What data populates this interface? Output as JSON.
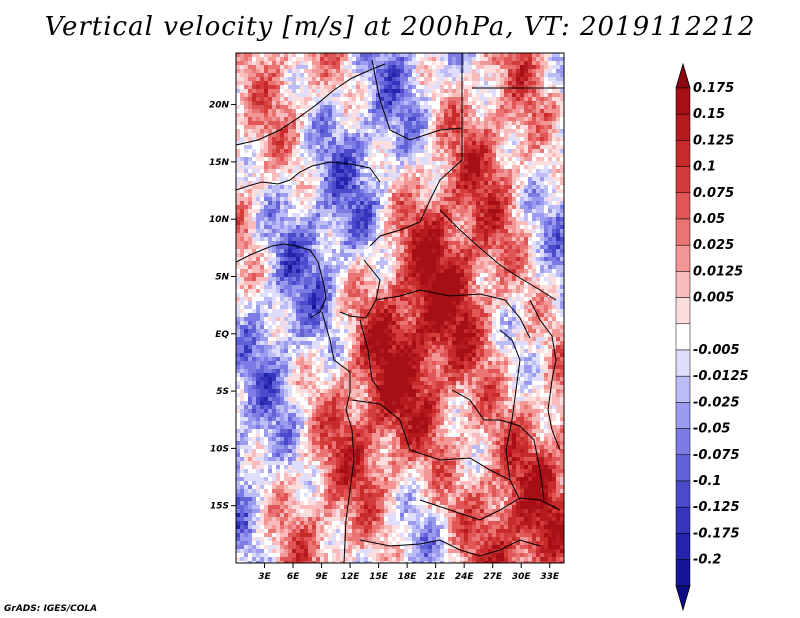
{
  "title": "Vertical velocity [m/s] at 200hPa, VT: 2019112212",
  "credit": "GrADS: IGES/COLA",
  "map": {
    "lon_range": [
      0,
      34.5
    ],
    "lat_range": [
      -20,
      24.5
    ],
    "lat_ticks": [
      {
        "value": 20,
        "label": "20N"
      },
      {
        "value": 15,
        "label": "15N"
      },
      {
        "value": 10,
        "label": "10N"
      },
      {
        "value": 5,
        "label": "5N"
      },
      {
        "value": 0,
        "label": "EQ"
      },
      {
        "value": -5,
        "label": "5S"
      },
      {
        "value": -10,
        "label": "10S"
      },
      {
        "value": -15,
        "label": "15S"
      }
    ],
    "lon_ticks": [
      {
        "value": 3,
        "label": "3E"
      },
      {
        "value": 6,
        "label": "6E"
      },
      {
        "value": 9,
        "label": "9E"
      },
      {
        "value": 12,
        "label": "12E"
      },
      {
        "value": 15,
        "label": "15E"
      },
      {
        "value": 18,
        "label": "18E"
      },
      {
        "value": 21,
        "label": "21E"
      },
      {
        "value": 24,
        "label": "24E"
      },
      {
        "value": 27,
        "label": "27E"
      },
      {
        "value": 30,
        "label": "30E"
      },
      {
        "value": 33,
        "label": "33E"
      }
    ]
  },
  "colorbar": {
    "levels": [
      {
        "label": "0.175",
        "color": "#a50f15"
      },
      {
        "label": "0.15",
        "color": "#b51a1e"
      },
      {
        "label": "0.125",
        "color": "#c62a2a"
      },
      {
        "label": "0.1",
        "color": "#d43c3c"
      },
      {
        "label": "0.075",
        "color": "#e05656"
      },
      {
        "label": "0.05",
        "color": "#ea7474"
      },
      {
        "label": "0.025",
        "color": "#f29696"
      },
      {
        "label": "0.0125",
        "color": "#f8bcbc"
      },
      {
        "label": "0.005",
        "color": "#fcdede"
      },
      {
        "label": "",
        "color": "#ffffff"
      },
      {
        "label": "-0.005",
        "color": "#dedefc"
      },
      {
        "label": "-0.0125",
        "color": "#bcbcf6"
      },
      {
        "label": "-0.025",
        "color": "#9a9aee"
      },
      {
        "label": "-0.05",
        "color": "#7c7ce4"
      },
      {
        "label": "-0.075",
        "color": "#6262d8"
      },
      {
        "label": "-0.1",
        "color": "#4a4acb"
      },
      {
        "label": "-0.125",
        "color": "#3535bc"
      },
      {
        "label": "-0.175",
        "color": "#2323ac"
      },
      {
        "label": "-0.2",
        "color": "#15159a"
      }
    ],
    "top_arrow_color": "#8b0a10",
    "bottom_arrow_color": "#0c0c88"
  }
}
